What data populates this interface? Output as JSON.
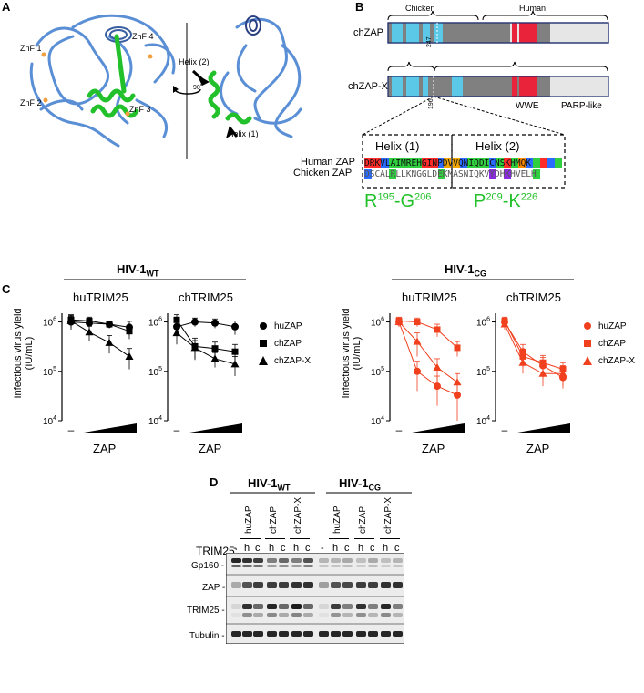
{
  "panels": {
    "A": {
      "label": "A",
      "znf_labels": [
        "ZnF 1",
        "ZnF 2",
        "ZnF 3",
        "ZnF 4"
      ],
      "rotation_label": "90˚",
      "helix_labels": [
        "Helix (2)",
        "Helix (1)"
      ]
    },
    "B": {
      "label": "B",
      "species_top": [
        "Chicken",
        "Human"
      ],
      "constructs": [
        "chZAP",
        "chZAP-X"
      ],
      "junctions": [
        "247",
        "196"
      ],
      "domain_labels": [
        "WWE",
        "PARP-like"
      ],
      "helix_headers": [
        "Helix (1)",
        "Helix (2)"
      ],
      "seq_rows": [
        {
          "name": "Human ZAP",
          "seq": "DRKVLAIMREHGINPDVVQNIQDICNSKHMQK"
        },
        {
          "name": "Chicken ZAP",
          "seq": "DSCALRLLKNGGLDEKMASNIQKVYDHKHVELH"
        }
      ],
      "residue_ranges": [
        {
          "start": "R",
          "start_sup": "195",
          "sep": "-",
          "end": "G",
          "end_sup": "206"
        },
        {
          "start": "P",
          "start_sup": "209",
          "sep": "-",
          "end": "K",
          "end_sup": "226"
        }
      ]
    },
    "C": {
      "label": "C",
      "groups": [
        {
          "name": "HIV-1",
          "sub": "WT"
        },
        {
          "name": "HIV-1",
          "sub": "CG"
        }
      ],
      "subplot_titles": [
        "huTRIM25",
        "chTRIM25",
        "huTRIM25",
        "chTRIM25"
      ],
      "ylabel_line1": "Infectious virus yield",
      "ylabel_line2": "(IU/mL)",
      "xlabel": "ZAP",
      "dash_label": "–",
      "legend_left": [
        "huZAP",
        "chZAP",
        "chZAP-X"
      ],
      "legend_right": [
        "huZAP",
        "chZAP",
        "chZAP-X"
      ]
    },
    "D": {
      "label": "D",
      "groups": [
        {
          "name": "HIV-1",
          "sub": "WT"
        },
        {
          "name": "HIV-1",
          "sub": "CG"
        }
      ],
      "construct_labels": [
        "huZAP",
        "chZAP",
        "chZAP-X",
        "huZAP",
        "chZAP",
        "chZAP-X"
      ],
      "trim25_label": "TRIM25:",
      "lane_codes": [
        "-",
        "h",
        "c",
        "h",
        "c",
        "h",
        "c",
        "-",
        "h",
        "c",
        "h",
        "c",
        "h",
        "c"
      ],
      "blot_labels": [
        "Gp160 -",
        "ZAP -",
        "TRIM25 -",
        "Tubulin -"
      ]
    }
  },
  "colors": {
    "black": "#000000",
    "red": "#f0401e",
    "green": "#22c02a",
    "protein_blue": "#5a8fd6",
    "bar_cyan": "#5bc8e8",
    "bar_grey": "#808080",
    "bar_red": "#e8233a",
    "bar_light": "#e6e6e6",
    "bar_dark": "#1a2a6c"
  },
  "chart_data": [
    {
      "type": "line",
      "group": "HIV-1 WT",
      "title": "huTRIM25",
      "x": [
        0,
        1,
        2,
        3
      ],
      "yscale": "log",
      "ylim": [
        10000,
        1500000
      ],
      "series": [
        {
          "name": "huZAP",
          "marker": "circle",
          "values": [
            1000000,
            950000,
            900000,
            780000
          ],
          "err": [
            300000,
            200000,
            150000,
            250000
          ]
        },
        {
          "name": "chZAP",
          "marker": "square",
          "values": [
            1100000,
            1050000,
            900000,
            650000
          ],
          "err": [
            300000,
            200000,
            150000,
            200000
          ]
        },
        {
          "name": "chZAP-X",
          "marker": "triangle",
          "values": [
            1050000,
            620000,
            380000,
            200000
          ],
          "err": [
            300000,
            200000,
            150000,
            90000
          ]
        }
      ]
    },
    {
      "type": "line",
      "group": "HIV-1 WT",
      "title": "chTRIM25",
      "x": [
        0,
        1,
        2,
        3
      ],
      "yscale": "log",
      "ylim": [
        10000,
        1500000
      ],
      "series": [
        {
          "name": "huZAP",
          "marker": "circle",
          "values": [
            800000,
            1000000,
            950000,
            800000
          ],
          "err": [
            200000,
            200000,
            200000,
            250000
          ]
        },
        {
          "name": "chZAP",
          "marker": "square",
          "values": [
            1100000,
            320000,
            290000,
            250000
          ],
          "err": [
            300000,
            150000,
            100000,
            100000
          ]
        },
        {
          "name": "chZAP-X",
          "marker": "triangle",
          "values": [
            600000,
            300000,
            180000,
            140000
          ],
          "err": [
            250000,
            120000,
            60000,
            60000
          ]
        }
      ]
    },
    {
      "type": "line",
      "group": "HIV-1 CG",
      "title": "huTRIM25",
      "x": [
        0,
        1,
        2,
        3
      ],
      "yscale": "log",
      "ylim": [
        10000,
        1500000
      ],
      "series": [
        {
          "name": "huZAP",
          "marker": "circle",
          "values": [
            1000000,
            100000,
            50000,
            33000
          ],
          "err": [
            200000,
            60000,
            30000,
            28000
          ]
        },
        {
          "name": "chZAP",
          "marker": "square",
          "values": [
            1050000,
            1000000,
            700000,
            300000
          ],
          "err": [
            200000,
            200000,
            200000,
            100000
          ]
        },
        {
          "name": "chZAP-X",
          "marker": "triangle",
          "values": [
            1000000,
            400000,
            120000,
            60000
          ],
          "err": [
            200000,
            200000,
            60000,
            30000
          ]
        }
      ]
    },
    {
      "type": "line",
      "group": "HIV-1 CG",
      "title": "chTRIM25",
      "x": [
        0,
        1,
        2,
        3
      ],
      "yscale": "log",
      "ylim": [
        10000,
        1500000
      ],
      "series": [
        {
          "name": "huZAP",
          "marker": "circle",
          "values": [
            1000000,
            250000,
            130000,
            75000
          ],
          "err": [
            200000,
            100000,
            60000,
            30000
          ]
        },
        {
          "name": "chZAP",
          "marker": "square",
          "values": [
            1050000,
            200000,
            150000,
            110000
          ],
          "err": [
            200000,
            80000,
            60000,
            40000
          ]
        },
        {
          "name": "chZAP-X",
          "marker": "triangle",
          "values": [
            900000,
            150000,
            90000,
            90000
          ],
          "err": [
            200000,
            60000,
            40000,
            40000
          ]
        }
      ]
    }
  ]
}
